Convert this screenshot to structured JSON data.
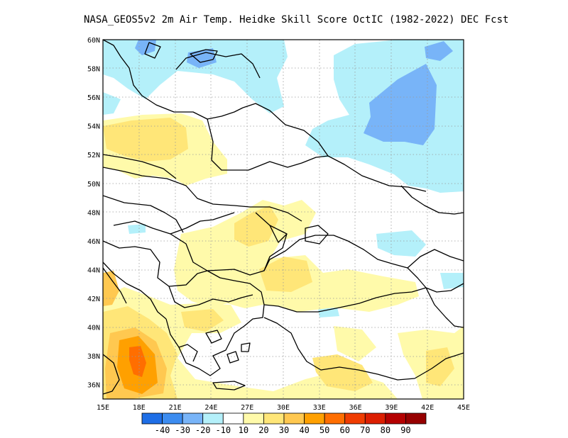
{
  "title": "NASA_GEOS5v2  2m Air Temp. Heidke Skill Score OctIC (1982-2022) DEC Fcst",
  "map": {
    "lon_ticks": [
      "15E",
      "18E",
      "21E",
      "24E",
      "27E",
      "30E",
      "33E",
      "36E",
      "39E",
      "42E",
      "45E"
    ],
    "lat_ticks": [
      "36N",
      "38N",
      "40N",
      "42N",
      "44N",
      "46N",
      "48N",
      "50N",
      "52N",
      "54N",
      "56N",
      "58N",
      "60N"
    ],
    "lon_range": [
      15,
      45
    ],
    "lat_range": [
      35,
      60
    ],
    "grid": "dotted"
  },
  "colorbar": {
    "labels": [
      "-40",
      "-30",
      "-20",
      "-10",
      "10",
      "20",
      "30",
      "40",
      "50",
      "60",
      "70",
      "80",
      "90"
    ],
    "colors": [
      "#1e6ee6",
      "#3c8cf0",
      "#78b4f8",
      "#b4f0fa",
      "#ffffff",
      "#fffaaa",
      "#ffe678",
      "#ffc850",
      "#ffa000",
      "#ff6e00",
      "#f03c00",
      "#dc1e00",
      "#b40000",
      "#960000"
    ]
  },
  "fills": {
    "light_blue": "#b4f0fa",
    "mid_blue": "#78b4f8",
    "pale_yellow": "#fffaaa",
    "yellow": "#ffe678",
    "light_orange": "#ffc850",
    "orange": "#ffa000",
    "dark_orange": "#ff6e00"
  }
}
